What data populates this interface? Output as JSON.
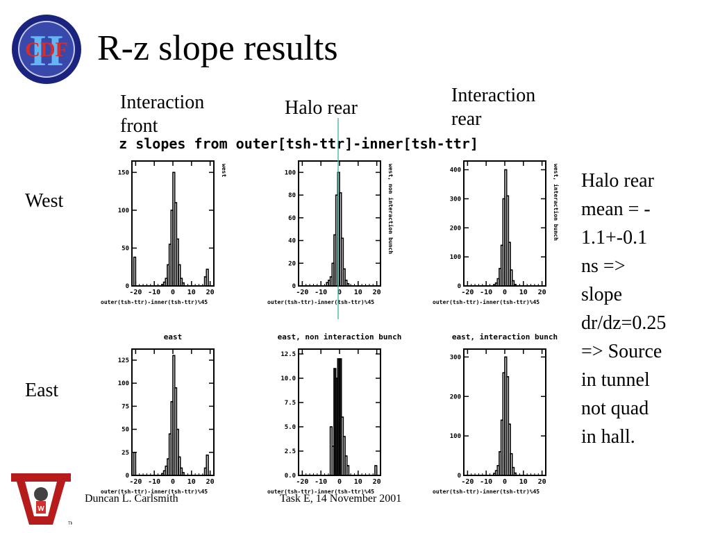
{
  "slide": {
    "title": "R-z slope results",
    "column_labels": {
      "interaction_front": "Interaction front",
      "halo_rear": "Halo rear",
      "interaction_rear": "Interaction rear"
    },
    "row_labels": {
      "west": "West",
      "east": "East"
    },
    "side_note_lines": [
      "Halo rear",
      "mean = -",
      "1.1+-0.1",
      "ns =>",
      "slope",
      "dr/dz=0.25",
      "=> Source",
      "in tunnel",
      "not quad",
      "in hall."
    ],
    "footer_left": "Duncan L. Carlsmith",
    "footer_center": "Task E, 14 November 2001",
    "logo_cdf_text": "CDF",
    "logo_cdf_numeral": "II",
    "logo_wisc_letter": "W",
    "logo_wisc_tm": "TM",
    "colors": {
      "marker_line": "#3cb39a",
      "logo_blue": "#1a237e",
      "logo_red": "#b71c1c"
    }
  },
  "plot_header": "z slopes from outer[tsh-ttr]-inner[tsh-ttr]",
  "chart_data": [
    {
      "type": "bar",
      "id": "west-front",
      "title": "",
      "side_label": "west",
      "xlabel": "outer(tsh-ttr)-inner(tsh-ttr)%45",
      "xlim": [
        -22,
        22
      ],
      "ylim": [
        0,
        165
      ],
      "xticks": [
        -20,
        -10,
        0,
        10,
        20
      ],
      "yticks": [
        0,
        50,
        100,
        150
      ],
      "ytick_labels": [
        "0",
        "50",
        "100",
        "150"
      ],
      "bins": [
        [
          -21,
          -20,
          38
        ],
        [
          -20,
          -19,
          0
        ],
        [
          -6,
          -5,
          2
        ],
        [
          -5,
          -4,
          5
        ],
        [
          -4,
          -3,
          10
        ],
        [
          -3,
          -2,
          28
        ],
        [
          -2,
          -1,
          55
        ],
        [
          -1,
          0,
          100
        ],
        [
          0,
          1,
          150
        ],
        [
          1,
          2,
          110
        ],
        [
          2,
          3,
          62
        ],
        [
          3,
          4,
          28
        ],
        [
          4,
          5,
          10
        ],
        [
          5,
          6,
          4
        ],
        [
          17,
          18,
          12
        ],
        [
          18,
          19,
          22
        ]
      ]
    },
    {
      "type": "bar",
      "id": "west-halo",
      "title": "",
      "side_label": "west, non interaction bunch",
      "xlabel": "outer(tsh-ttr)-inner(tsh-ttr)%45",
      "xlim": [
        -22,
        22
      ],
      "ylim": [
        0,
        110
      ],
      "xticks": [
        -20,
        -10,
        0,
        10,
        20
      ],
      "yticks": [
        0,
        20,
        40,
        60,
        80,
        100
      ],
      "ytick_labels": [
        "0",
        "20",
        "40",
        "60",
        "80",
        "100"
      ],
      "bins": [
        [
          -7,
          -6,
          3
        ],
        [
          -6,
          -5,
          5
        ],
        [
          -5,
          -4,
          8
        ],
        [
          -4,
          -3,
          20
        ],
        [
          -3,
          -2,
          45
        ],
        [
          -2,
          -1,
          80
        ],
        [
          -1,
          0,
          100
        ],
        [
          0,
          1,
          82
        ],
        [
          1,
          2,
          42
        ],
        [
          2,
          3,
          15
        ],
        [
          3,
          4,
          5
        ],
        [
          4,
          5,
          2
        ]
      ]
    },
    {
      "type": "bar",
      "id": "west-rear",
      "title": "",
      "side_label": "west, interaction bunch",
      "xlabel": "outer(tsh-ttr)-inner(tsh-ttr)%45",
      "xlim": [
        -22,
        22
      ],
      "ylim": [
        0,
        430
      ],
      "xticks": [
        -20,
        -10,
        0,
        10,
        20
      ],
      "yticks": [
        0,
        100,
        200,
        300,
        400
      ],
      "ytick_labels": [
        "0",
        "100",
        "200",
        "300",
        "400"
      ],
      "bins": [
        [
          -6,
          -5,
          4
        ],
        [
          -5,
          -4,
          10
        ],
        [
          -4,
          -3,
          25
        ],
        [
          -3,
          -2,
          60
        ],
        [
          -2,
          -1,
          140
        ],
        [
          -1,
          0,
          300
        ],
        [
          0,
          1,
          400
        ],
        [
          1,
          2,
          310
        ],
        [
          2,
          3,
          150
        ],
        [
          3,
          4,
          55
        ],
        [
          4,
          5,
          18
        ],
        [
          5,
          6,
          5
        ]
      ]
    },
    {
      "type": "bar",
      "id": "east-front",
      "title": "east",
      "xlabel": "outer(tsh-ttr)-inner(tsh-ttr)%45",
      "xlim": [
        -22,
        22
      ],
      "ylim": [
        0,
        137
      ],
      "xticks": [
        -20,
        -10,
        0,
        10,
        20
      ],
      "yticks": [
        0,
        25,
        50,
        75,
        100,
        125
      ],
      "ytick_labels": [
        "0",
        "25",
        "50",
        "75",
        "100",
        "125"
      ],
      "bins": [
        [
          -21,
          -20,
          25
        ],
        [
          -20,
          -19,
          0
        ],
        [
          -6,
          -5,
          2
        ],
        [
          -5,
          -4,
          5
        ],
        [
          -4,
          -3,
          10
        ],
        [
          -3,
          -2,
          18
        ],
        [
          -2,
          -1,
          45
        ],
        [
          -1,
          0,
          80
        ],
        [
          0,
          1,
          130
        ],
        [
          1,
          2,
          95
        ],
        [
          2,
          3,
          50
        ],
        [
          3,
          4,
          20
        ],
        [
          4,
          5,
          8
        ],
        [
          5,
          6,
          3
        ],
        [
          17,
          18,
          8
        ],
        [
          18,
          19,
          22
        ]
      ]
    },
    {
      "type": "bar",
      "id": "east-halo",
      "title": "east, non interaction bunch",
      "xlabel": "outer(tsh-ttr)-inner(tsh-ttr)%45",
      "xlim": [
        -22,
        22
      ],
      "ylim": [
        0,
        13
      ],
      "xticks": [
        -20,
        -10,
        0,
        10,
        20
      ],
      "yticks": [
        0,
        2.5,
        5,
        7.5,
        10,
        12.5
      ],
      "ytick_labels": [
        "0.0",
        "2.5",
        "5.0",
        "7.5",
        "10.0",
        "12.5"
      ],
      "bins": [
        [
          -5,
          -4,
          5
        ],
        [
          -4,
          -3,
          3
        ],
        [
          -3,
          -2,
          11
        ],
        [
          -2,
          -1,
          10
        ],
        [
          -1,
          0,
          12
        ],
        [
          0,
          1,
          12
        ],
        [
          1,
          2,
          6
        ],
        [
          2,
          3,
          4
        ],
        [
          3,
          4,
          2
        ],
        [
          4,
          5,
          1
        ],
        [
          19,
          20,
          1
        ]
      ]
    },
    {
      "type": "bar",
      "id": "east-rear",
      "title": "east, interaction bunch",
      "xlabel": "outer(tsh-ttr)-inner(tsh-ttr)%45",
      "xlim": [
        -22,
        22
      ],
      "ylim": [
        0,
        320
      ],
      "xticks": [
        -20,
        -10,
        0,
        10,
        20
      ],
      "yticks": [
        0,
        100,
        200,
        300
      ],
      "ytick_labels": [
        "0",
        "100",
        "200",
        "300"
      ],
      "bins": [
        [
          -6,
          -5,
          5
        ],
        [
          -5,
          -4,
          12
        ],
        [
          -4,
          -3,
          25
        ],
        [
          -3,
          -2,
          60
        ],
        [
          -2,
          -1,
          140
        ],
        [
          -1,
          0,
          260
        ],
        [
          0,
          1,
          300
        ],
        [
          1,
          2,
          250
        ],
        [
          2,
          3,
          130
        ],
        [
          3,
          4,
          55
        ],
        [
          4,
          5,
          20
        ],
        [
          5,
          6,
          6
        ]
      ]
    }
  ]
}
